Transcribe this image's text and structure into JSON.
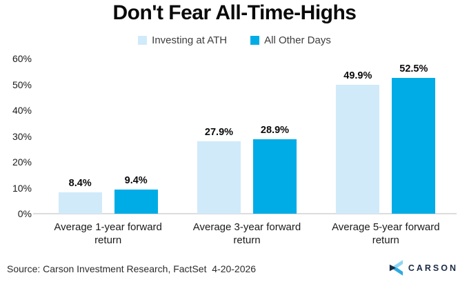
{
  "title": "Don't Fear All-Time-Highs",
  "legend": [
    {
      "label": "Investing at ATH",
      "color": "#d0eafa"
    },
    {
      "label": "All Other Days",
      "color": "#00ace6"
    }
  ],
  "source": "Source: Carson Investment Research, FactSet  4-20-2026",
  "logo": {
    "text": "CARSON",
    "navy": "#1b2b45",
    "light_blue": "#8ed6f3",
    "mid_blue": "#2fa9e0"
  },
  "chart_data": {
    "type": "bar",
    "categories": [
      "Average 1-year forward return",
      "Average 3-year forward return",
      "Average 5-year forward return"
    ],
    "series": [
      {
        "name": "Investing at ATH",
        "color": "#d0eafa",
        "values": [
          8.4,
          27.9,
          49.9
        ]
      },
      {
        "name": "All Other Days",
        "color": "#00ace6",
        "values": [
          9.4,
          28.9,
          52.5
        ]
      }
    ],
    "value_labels": [
      [
        "8.4%",
        "9.4%"
      ],
      [
        "27.9%",
        "28.9%"
      ],
      [
        "49.9%",
        "52.5%"
      ]
    ],
    "y_ticks": [
      "0%",
      "10%",
      "20%",
      "30%",
      "40%",
      "50%",
      "60%"
    ],
    "y_tick_values": [
      0,
      10,
      20,
      30,
      40,
      50,
      60
    ],
    "ylim": [
      0,
      60
    ],
    "grid": false,
    "legend_position": "top"
  }
}
